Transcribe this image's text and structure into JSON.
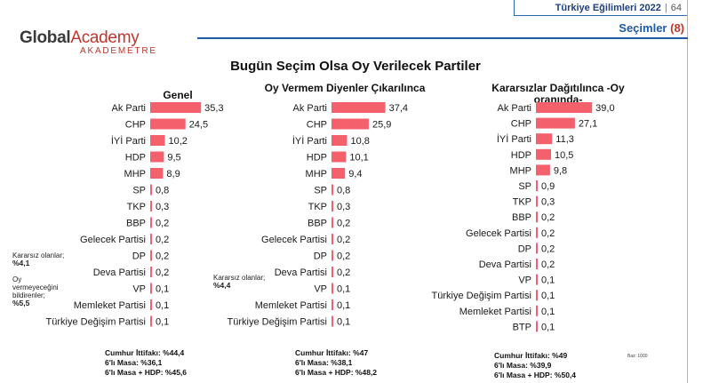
{
  "header": {
    "report_title": "Türkiye Eğilimleri 2022",
    "separator": "|",
    "page_number": "64",
    "section": "Seçimler",
    "section_number": "(8)"
  },
  "logo": {
    "word1": "Global",
    "word2": "Academy",
    "sub": "AKADEMETRE"
  },
  "title": "Bugün Seçim Olsa Oy Verilecek Partiler",
  "side_notes": {
    "undecided_label": "Kararsız olanlar;",
    "undecided_value": "%4,1",
    "nonvoters_label": "Oy vermeyeceğini bildirenler;",
    "nonvoters_value": "%5,5",
    "undecided2_label": "Kararsız olanlar;",
    "undecided2_value": "%4,4"
  },
  "footnote": "Baz: 1000",
  "colors": {
    "bar": "#f4606c",
    "brand": "#1f5aa5",
    "accent": "#c0362c"
  },
  "chart_data": [
    {
      "type": "bar",
      "orientation": "horizontal",
      "title": "Genel",
      "categories": [
        "Ak Parti",
        "CHP",
        "İYİ Parti",
        "HDP",
        "MHP",
        "SP",
        "TKP",
        "BBP",
        "Gelecek Partisi",
        "DP",
        "Deva Partisi",
        "VP",
        "Memleket Partisi",
        "Türkiye Değişim Partisi"
      ],
      "values": [
        35.3,
        24.5,
        10.2,
        9.5,
        8.9,
        0.8,
        0.3,
        0.2,
        0.2,
        0.2,
        0.2,
        0.1,
        0.1,
        0.1
      ],
      "labels": [
        "35,3",
        "24,5",
        "10,2",
        "9,5",
        "8,9",
        "0,8",
        "0,3",
        "0,2",
        "0,2",
        "0,2",
        "0,2",
        "0,1",
        "0,1",
        "0,1"
      ],
      "summary": [
        "Cumhur İttifakı: %44,4",
        "6'lı Masa: %36,1",
        "6'lı Masa + HDP: %45,6"
      ]
    },
    {
      "type": "bar",
      "orientation": "horizontal",
      "title": "Oy Vermem Diyenler Çıkarılınca",
      "categories": [
        "Ak Parti",
        "CHP",
        "İYİ Parti",
        "HDP",
        "MHP",
        "SP",
        "TKP",
        "BBP",
        "Gelecek Partisi",
        "DP",
        "Deva Partisi",
        "VP",
        "Memleket Partisi",
        "Türkiye Değişim Partisi"
      ],
      "values": [
        37.4,
        25.9,
        10.8,
        10.1,
        9.4,
        0.8,
        0.3,
        0.2,
        0.2,
        0.2,
        0.2,
        0.1,
        0.1,
        0.1
      ],
      "labels": [
        "37,4",
        "25,9",
        "10,8",
        "10,1",
        "9,4",
        "0,8",
        "0,3",
        "0,2",
        "0,2",
        "0,2",
        "0,2",
        "0,1",
        "0,1",
        "0,1"
      ],
      "summary": [
        "Cumhur İttifakı: %47",
        "6'lı Masa: %38,1",
        "6'lı Masa + HDP: %48,2"
      ]
    },
    {
      "type": "bar",
      "orientation": "horizontal",
      "title": "Kararsızlar Dağıtılınca -Oy oranında-",
      "categories": [
        "Ak Parti",
        "CHP",
        "İYİ Parti",
        "HDP",
        "MHP",
        "SP",
        "TKP",
        "BBP",
        "Gelecek Partisi",
        "DP",
        "Deva Partisi",
        "VP",
        "Türkiye Değişim Partisi",
        "Memleket Partisi",
        "BTP"
      ],
      "values": [
        39.0,
        27.1,
        11.3,
        10.5,
        9.8,
        0.9,
        0.3,
        0.2,
        0.2,
        0.2,
        0.2,
        0.1,
        0.1,
        0.1,
        0.1
      ],
      "labels": [
        "39,0",
        "27,1",
        "11,3",
        "10,5",
        "9,8",
        "0,9",
        "0,3",
        "0,2",
        "0,2",
        "0,2",
        "0,2",
        "0,1",
        "0,1",
        "0,1",
        "0,1"
      ],
      "summary": [
        "Cumhur İttifakı: %49",
        "6'lı Masa: %39,9",
        "6'lı Masa + HDP: %50,4"
      ]
    }
  ]
}
